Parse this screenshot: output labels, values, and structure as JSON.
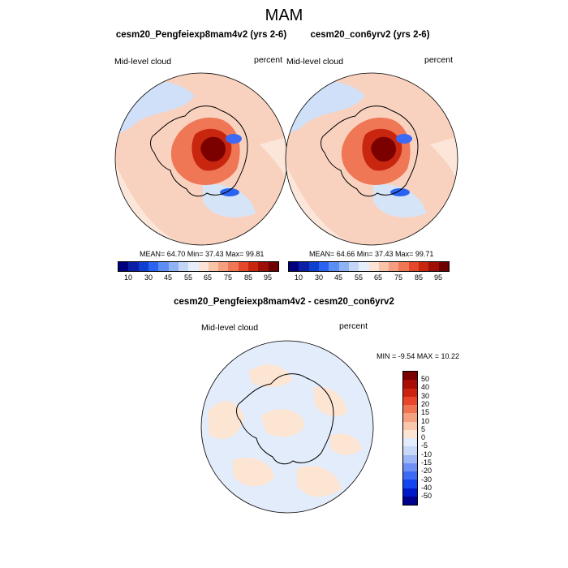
{
  "figure": {
    "title": "MAM"
  },
  "panels": [
    {
      "title": "cesm20_Pengfeiexp8mam4v2 (yrs 2-6)",
      "left_label": "Mid-level cloud",
      "right_label": "percent",
      "stats": "MEAN=  64.70  Min=  37.43  Max=  99.81"
    },
    {
      "title": "cesm20_con6yrv2 (yrs 2-6)",
      "left_label": "Mid-level cloud",
      "right_label": "percent",
      "stats": "MEAN=  64.66  Min=  37.43  Max=  99.71"
    },
    {
      "title": "cesm20_Pengfeiexp8mam4v2 - cesm20_con6yrv2",
      "left_label": "Mid-level cloud",
      "right_label": "percent",
      "stats": "MIN =  -9.54 MAX =  10.22"
    }
  ],
  "colorbars": {
    "absolute": {
      "colors": [
        "#00007f",
        "#0a1fa6",
        "#0f3fd0",
        "#2a63f0",
        "#5c8df2",
        "#8fb2f3",
        "#c3d6f6",
        "#e6eefb",
        "#fbe4d6",
        "#f8c4a8",
        "#f59f80",
        "#ef7756",
        "#e4482a",
        "#c8260f",
        "#9e1006",
        "#6e0000"
      ],
      "tick_labels": [
        "10",
        "30",
        "45",
        "55",
        "65",
        "75",
        "85",
        "95"
      ]
    },
    "difference": {
      "colors": [
        "#00008b",
        "#0019c8",
        "#1446f0",
        "#3d6af4",
        "#6e90f4",
        "#9db6f5",
        "#c8d9f8",
        "#e3ecfb",
        "#fde5d4",
        "#f9c8ac",
        "#f5a17f",
        "#f07453",
        "#e8452a",
        "#cc2410",
        "#a80e05",
        "#7b0000"
      ],
      "tick_labels": [
        "50",
        "40",
        "30",
        "20",
        "15",
        "10",
        "5",
        "0",
        "-5",
        "-10",
        "-15",
        "-20",
        "-30",
        "-40",
        "-50"
      ]
    }
  },
  "chart_data": [
    {
      "type": "heatmap",
      "projection": "south polar stereographic",
      "title": "cesm20_Pengfeiexp8mam4v2 (yrs 2-6)",
      "variable": "Mid-level cloud",
      "units": "percent",
      "summary": {
        "mean": 64.7,
        "min": 37.43,
        "max": 99.81
      },
      "levels": [
        10,
        15,
        20,
        25,
        30,
        35,
        40,
        45,
        50,
        55,
        60,
        65,
        70,
        75,
        80,
        85,
        90,
        95
      ]
    },
    {
      "type": "heatmap",
      "projection": "south polar stereographic",
      "title": "cesm20_con6yrv2 (yrs 2-6)",
      "variable": "Mid-level cloud",
      "units": "percent",
      "summary": {
        "mean": 64.66,
        "min": 37.43,
        "max": 99.71
      },
      "levels": [
        10,
        15,
        20,
        25,
        30,
        35,
        40,
        45,
        50,
        55,
        60,
        65,
        70,
        75,
        80,
        85,
        90,
        95
      ]
    },
    {
      "type": "heatmap",
      "projection": "south polar stereographic",
      "title": "cesm20_Pengfeiexp8mam4v2 - cesm20_con6yrv2",
      "variable": "Mid-level cloud",
      "units": "percent",
      "summary": {
        "min": -9.54,
        "max": 10.22
      },
      "levels": [
        -50,
        -40,
        -30,
        -20,
        -15,
        -10,
        -5,
        0,
        5,
        10,
        15,
        20,
        30,
        40,
        50
      ]
    }
  ]
}
